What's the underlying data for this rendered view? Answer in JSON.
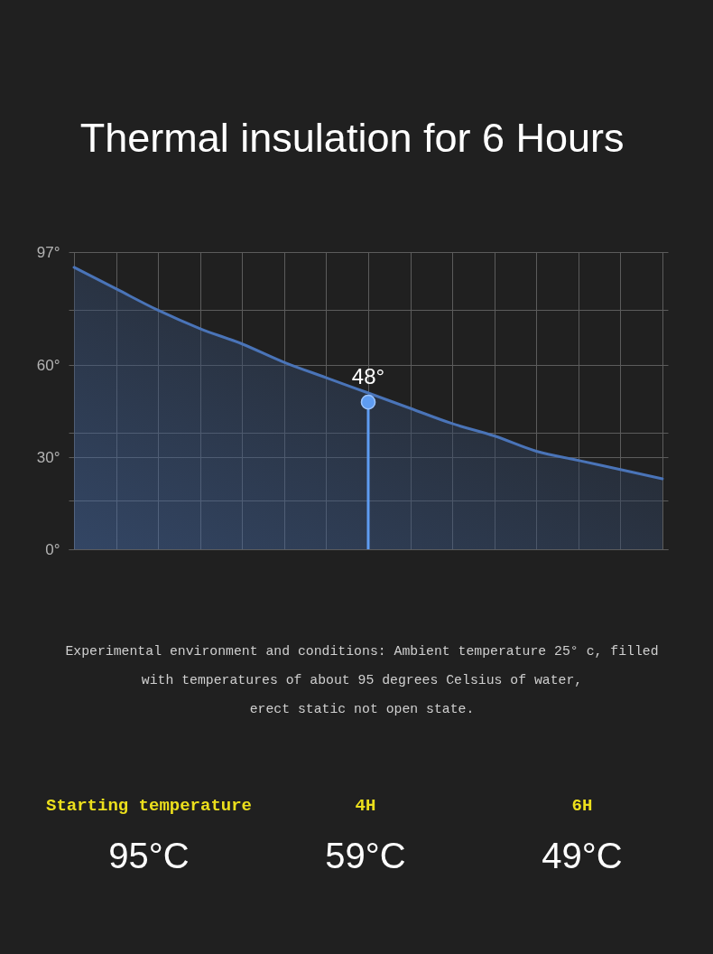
{
  "chart_data": [
    {
      "type": "area",
      "title": "Thermal insulation for 6 Hours",
      "categories": [
        null,
        null,
        null,
        null,
        null,
        null,
        null,
        null,
        null,
        null,
        null,
        null,
        null,
        null,
        null
      ],
      "series": [
        {
          "color": "#4a74b8",
          "values": [
            92,
            85,
            78,
            72,
            67,
            61,
            56,
            51,
            46,
            41,
            37,
            32,
            29,
            26,
            23
          ]
        },
        {
          "type": "lollipop",
          "color": "#5e9cf2",
          "values": [
            null,
            null,
            null,
            null,
            null,
            null,
            null,
            48,
            null,
            null,
            null,
            null,
            null,
            null,
            null
          ],
          "value_labels": [
            null,
            null,
            null,
            null,
            null,
            null,
            null,
            "48°",
            null,
            null,
            null,
            null,
            null,
            null,
            null
          ]
        }
      ],
      "ylim": [
        0,
        97
      ],
      "yticks": [
        {
          "value": 0,
          "label": "0°"
        },
        {
          "value": 16,
          "label": null
        },
        {
          "value": 30,
          "label": "30°"
        },
        {
          "value": 38,
          "label": null
        },
        {
          "value": 60,
          "label": "60°"
        },
        {
          "value": 78,
          "label": null
        },
        {
          "value": 97,
          "label": "97°"
        }
      ],
      "grid": true,
      "tick_labels": "y",
      "annotations": [
        "Experimental environment and conditions: Ambient temperature 25° c, filled",
        "with temperatures of about 95 degrees Celsius of water,",
        "erect static not open state."
      ]
    },
    {
      "type": "other",
      "categories": [
        "Starting temperature",
        "4H",
        "6H"
      ],
      "value_labels": [
        "95°C",
        "59°C",
        "49°C"
      ]
    }
  ]
}
